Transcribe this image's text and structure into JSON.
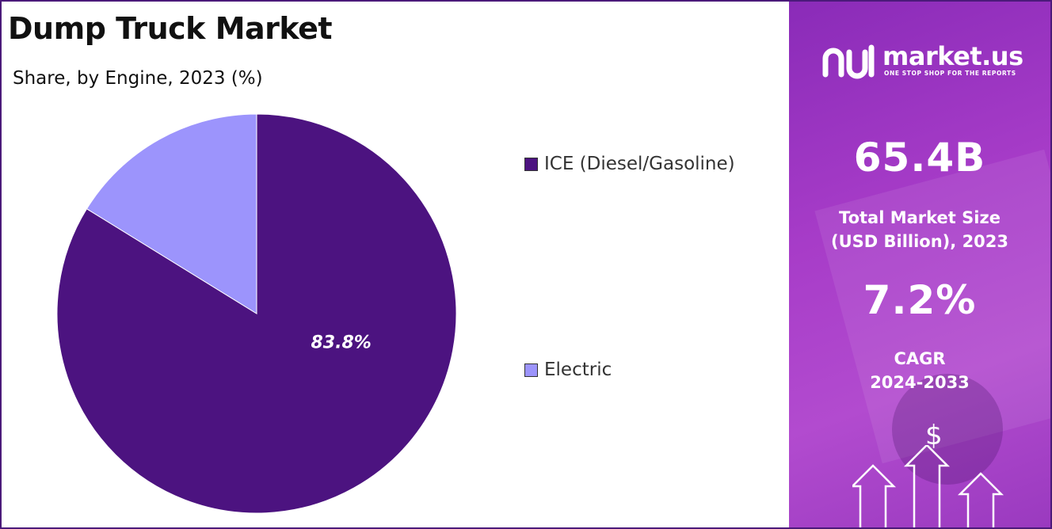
{
  "header": {
    "title": "Dump Truck Market",
    "subtitle": "Share, by Engine, 2023 (%)"
  },
  "chart_data": {
    "type": "pie",
    "title": "Dump Truck Market",
    "subtitle": "Share, by Engine, 2023 (%)",
    "categories": [
      "ICE (Diesel/Gasoline)",
      "Electric"
    ],
    "values": [
      83.8,
      16.2
    ],
    "colors": [
      "#4c1380",
      "#9c94fc"
    ],
    "data_labels": [
      "83.8%",
      ""
    ],
    "legend_position": "right"
  },
  "legend": [
    {
      "label": "ICE (Diesel/Gasoline)",
      "color": "#4c1380"
    },
    {
      "label": "Electric",
      "color": "#9c94fc"
    }
  ],
  "sidebar": {
    "brand": "market.us",
    "tagline": "ONE STOP SHOP FOR THE REPORTS",
    "market_size_value": "65.4B",
    "market_size_label_line1": "Total Market Size",
    "market_size_label_line2": "(USD Billion), 2023",
    "cagr_value": "7.2%",
    "cagr_label_line1": "CAGR",
    "cagr_label_line2": "2024-2033",
    "dollar_symbol": "$",
    "icons": [
      "market-us-logo-icon",
      "dollar-icon",
      "growth-arrows-icon"
    ]
  }
}
